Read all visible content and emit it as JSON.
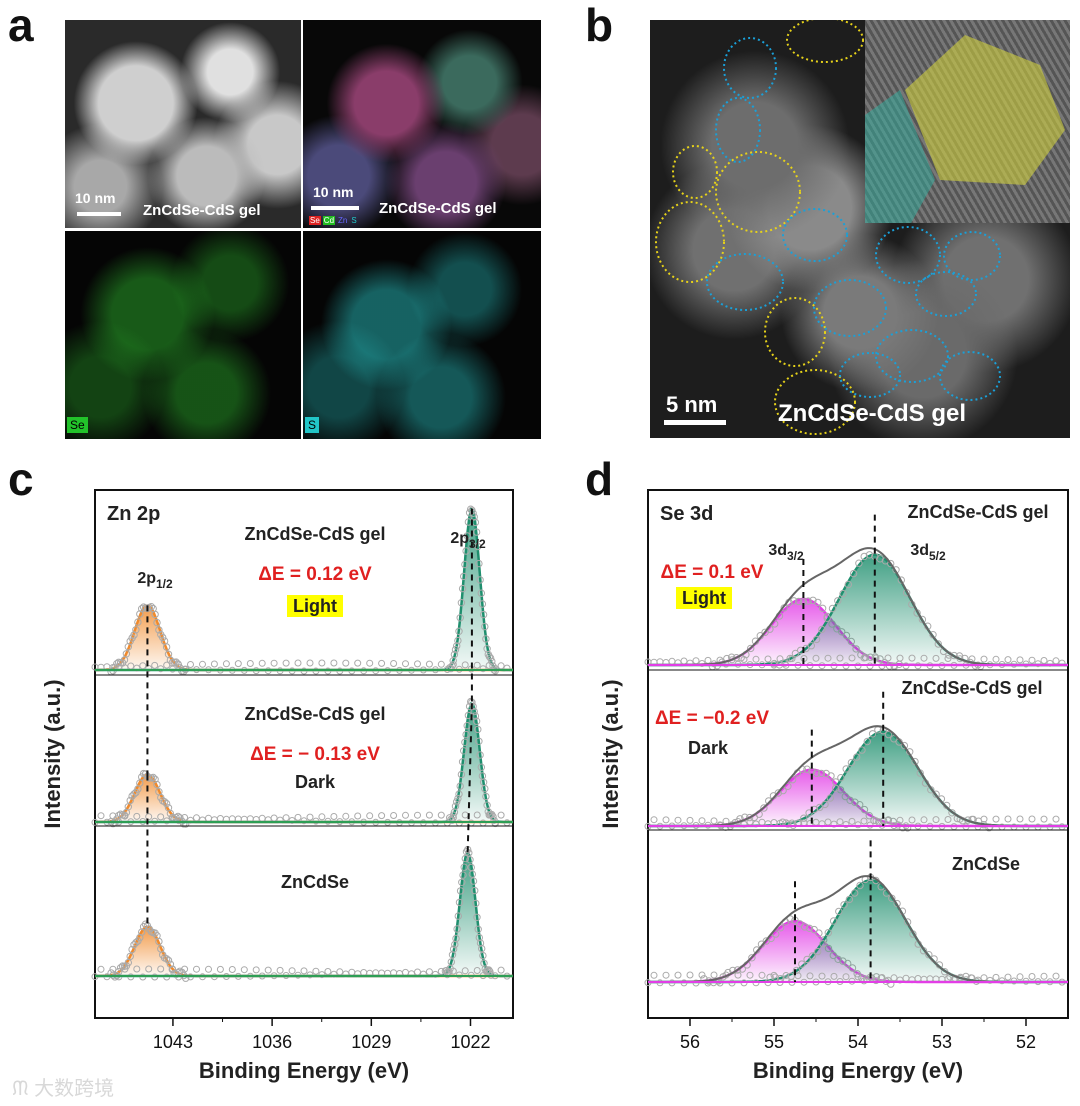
{
  "panels": {
    "a": "a",
    "b": "b",
    "c": "c",
    "d": "d"
  },
  "panel_a": {
    "haadf": {
      "scale": "10 nm",
      "label": "ZnCdSe-CdS gel"
    },
    "mix": {
      "scale": "10 nm",
      "label": "ZnCdSe-CdS gel",
      "legend": [
        "Se",
        "Cd",
        "Zn",
        "S"
      ]
    },
    "se_map": {
      "element": "Se",
      "color": "#22c32a"
    },
    "s_map": {
      "element": "S",
      "color": "#22c6c8"
    }
  },
  "panel_b": {
    "scale": "5 nm",
    "label": "ZnCdSe-CdS gel"
  },
  "chart_data": [
    {
      "type": "line",
      "panel": "c",
      "title": "Zn 2p",
      "xlabel": "Binding Energy (eV)",
      "ylabel": "Intensity (a.u.)",
      "xlim": [
        1048.5,
        1019
      ],
      "xticks": [
        1043,
        1036,
        1029,
        1022
      ],
      "series": [
        {
          "sample": "ZnCdSe-CdS gel",
          "condition": "Light",
          "deltaE": "ΔE = 0.12 eV",
          "peaks": [
            1044.8,
            1021.9
          ]
        },
        {
          "sample": "ZnCdSe-CdS gel",
          "condition": "Dark",
          "deltaE": "ΔE = − 0.13 eV",
          "peaks": [
            1044.8,
            1021.9
          ]
        },
        {
          "sample": "ZnCdSe",
          "peaks": [
            1044.8,
            1022.2
          ]
        }
      ],
      "peak_labels": {
        "p12": "2p",
        "p12_sub": "1/2",
        "p32": "2p",
        "p32_sub": "3/2"
      },
      "colors": {
        "p12_fill": "#f08a2c",
        "p32_fill": "#1f8f6e",
        "raw": "#aaaaaa",
        "baseline": "#2e9e55"
      }
    },
    {
      "type": "line",
      "panel": "d",
      "title": "Se 3d",
      "xlabel": "Binding Energy (eV)",
      "ylabel": "Intensity (a.u.)",
      "xlim": [
        56.5,
        51.5
      ],
      "xticks": [
        56,
        55,
        54,
        53,
        52
      ],
      "series": [
        {
          "sample": "ZnCdSe-CdS gel",
          "condition": "Light",
          "deltaE": "ΔE = 0.1 eV",
          "peaks": [
            54.65,
            53.8
          ]
        },
        {
          "sample": "ZnCdSe-CdS gel",
          "condition": "Dark",
          "deltaE": "ΔE = −0.2 eV",
          "peaks": [
            54.55,
            53.7
          ]
        },
        {
          "sample": "ZnCdSe",
          "peaks": [
            54.75,
            53.85
          ]
        }
      ],
      "peak_labels": {
        "p32": "3d",
        "p32_sub": "3/2",
        "p52": "3d",
        "p52_sub": "5/2"
      },
      "colors": {
        "p32_fill": "#e23ee6",
        "p52_fill": "#1f8f6e",
        "raw": "#aaaaaa",
        "envelope": "#666666"
      }
    }
  ],
  "watermark": "大数跨境"
}
